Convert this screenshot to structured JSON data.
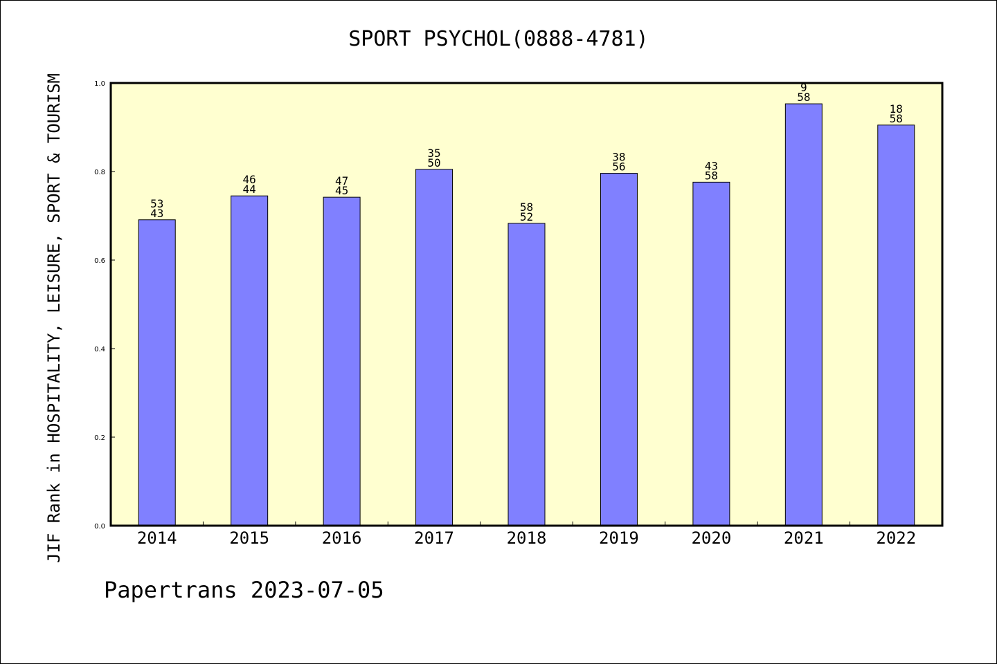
{
  "chart_data": {
    "type": "bar",
    "title": "SPORT PSYCHOL(0888-4781)",
    "ylabel": "JIF Rank in HOSPITALITY, LEISURE, SPORT & TOURISM",
    "xlabel": "",
    "categories": [
      "2014",
      "2015",
      "2016",
      "2017",
      "2018",
      "2019",
      "2020",
      "2021",
      "2022"
    ],
    "values": [
      0.691,
      0.745,
      0.742,
      0.805,
      0.683,
      0.796,
      0.776,
      0.953,
      0.905
    ],
    "rank_labels": [
      {
        "rank": "53",
        "total": "43"
      },
      {
        "rank": "46",
        "total": "44"
      },
      {
        "rank": "47",
        "total": "45"
      },
      {
        "rank": "35",
        "total": "50"
      },
      {
        "rank": "58",
        "total": "52"
      },
      {
        "rank": "38",
        "total": "56"
      },
      {
        "rank": "43",
        "total": "58"
      },
      {
        "rank": "9",
        "total": "58"
      },
      {
        "rank": "18",
        "total": "58"
      }
    ],
    "ylim": [
      0.0,
      1.0
    ],
    "yticks": [
      "0.0",
      "0.2",
      "0.4",
      "0.6",
      "0.8",
      "1.0"
    ],
    "grid": false,
    "legend": "none",
    "colors": {
      "bar_fill": "#8080ff",
      "bar_stroke": "#000000",
      "plot_background": "#ffffd0",
      "axis": "#000000"
    }
  },
  "footer": {
    "credit": "Papertrans 2023-07-05"
  }
}
